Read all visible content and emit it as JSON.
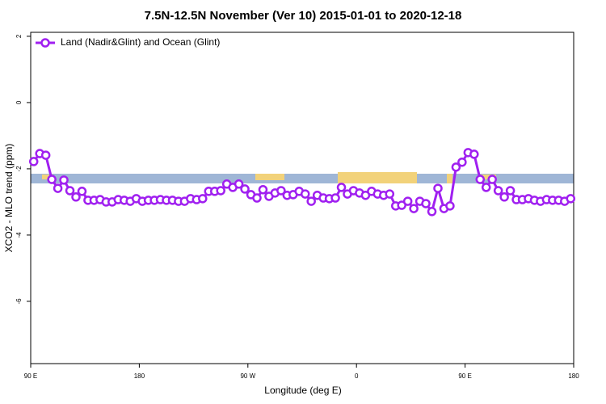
{
  "chart_data": {
    "type": "line",
    "title": "7.5N-12.5N November (Ver 10)   2015-01-01 to 2020-12-18",
    "x_label": "Longitude (deg E)",
    "y_label": "XCO2 - MLO trend (ppm)",
    "xlim": [
      90,
      540
    ],
    "xticks": [
      {
        "value": 90,
        "label": "90 E"
      },
      {
        "value": 180,
        "label": "180"
      },
      {
        "value": 270,
        "label": "90 W"
      },
      {
        "value": 360,
        "label": "0"
      },
      {
        "value": 450,
        "label": "90 E"
      },
      {
        "value": 540,
        "label": "180"
      }
    ],
    "ylim": [
      -7.88,
      2.12
    ],
    "yticks": [
      2,
      0,
      -2,
      -4,
      -6
    ],
    "legend": "top-left",
    "x": [
      92.5,
      97.5,
      102.5,
      107.5,
      112.5,
      117.5,
      122.5,
      127.5,
      132.5,
      137.5,
      142.5,
      147.5,
      152.5,
      157.5,
      162.5,
      167.5,
      172.5,
      177.5,
      182.5,
      187.5,
      192.5,
      197.5,
      202.5,
      207.5,
      212.5,
      217.5,
      222.5,
      227.5,
      232.5,
      237.5,
      242.5,
      247.5,
      252.5,
      257.5,
      262.5,
      267.5,
      272.5,
      277.5,
      282.5,
      287.5,
      292.5,
      297.5,
      302.5,
      307.5,
      312.5,
      317.5,
      322.5,
      327.5,
      332.5,
      337.5,
      342.5,
      347.5,
      352.5,
      357.5,
      362.5,
      367.5,
      372.5,
      377.5,
      382.5,
      387.5,
      392.5,
      397.5,
      402.5,
      407.5,
      412.5,
      417.5,
      422.5,
      427.5,
      432.5,
      437.5,
      442.5,
      447.5,
      452.5,
      457.5,
      462.5,
      467.5,
      472.5,
      477.5,
      482.5,
      487.5,
      492.5,
      497.5,
      502.5,
      507.5,
      512.5,
      517.5,
      522.5,
      527.5,
      532.5,
      537.5
    ],
    "series": [
      {
        "name": "Land (Nadir&Glint) and Ocean (Glint)",
        "color": "#a020f0",
        "values": [
          -1.78,
          -1.54,
          -1.59,
          -2.32,
          -2.59,
          -2.34,
          -2.66,
          -2.85,
          -2.68,
          -2.95,
          -2.95,
          -2.93,
          -3.0,
          -3.0,
          -2.93,
          -2.95,
          -2.98,
          -2.9,
          -2.98,
          -2.95,
          -2.95,
          -2.93,
          -2.95,
          -2.95,
          -2.98,
          -2.98,
          -2.9,
          -2.93,
          -2.9,
          -2.68,
          -2.68,
          -2.66,
          -2.46,
          -2.56,
          -2.46,
          -2.61,
          -2.78,
          -2.88,
          -2.63,
          -2.83,
          -2.73,
          -2.66,
          -2.8,
          -2.78,
          -2.68,
          -2.76,
          -2.98,
          -2.8,
          -2.88,
          -2.9,
          -2.88,
          -2.56,
          -2.76,
          -2.66,
          -2.73,
          -2.8,
          -2.68,
          -2.76,
          -2.8,
          -2.76,
          -3.12,
          -3.1,
          -2.98,
          -3.2,
          -2.98,
          -3.05,
          -3.29,
          -2.59,
          -3.2,
          -3.12,
          -1.95,
          -1.8,
          -1.51,
          -1.56,
          -2.32,
          -2.56,
          -2.32,
          -2.66,
          -2.85,
          -2.66,
          -2.93,
          -2.93,
          -2.9,
          -2.95,
          -2.98,
          -2.93,
          -2.95,
          -2.95,
          -2.98,
          -2.9
        ]
      }
    ]
  }
}
